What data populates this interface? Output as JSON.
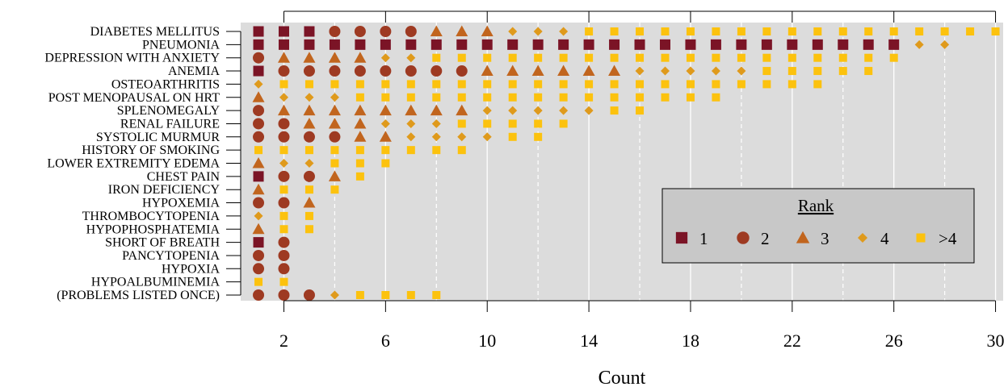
{
  "chart_data": {
    "type": "scatter",
    "xlabel": "Count",
    "xlim": [
      0.3,
      30.3
    ],
    "x_ticks": [
      2,
      6,
      10,
      14,
      18,
      22,
      26,
      30
    ],
    "x_top_ticks": [
      2,
      6,
      10,
      14,
      18,
      22,
      26,
      30
    ],
    "grid": true,
    "grid_solid_at": [
      2,
      6,
      10,
      14,
      18,
      22,
      26,
      30
    ],
    "grid_dashed_at": [
      4,
      8,
      12,
      16,
      20,
      24,
      28
    ],
    "legend": {
      "title": "Rank",
      "position": "bottom-right",
      "entries": [
        {
          "rank": "1",
          "label": "1",
          "shape": "square",
          "color": "#7b1426"
        },
        {
          "rank": "2",
          "label": "2",
          "shape": "circle",
          "color": "#9e3a22"
        },
        {
          "rank": "3",
          "label": "3",
          "shape": "triangle",
          "color": "#c1651e"
        },
        {
          "rank": "4",
          "label": "4",
          "shape": "diamond",
          "color": "#df9a1c"
        },
        {
          "rank": ">4",
          "label": ">4",
          "shape": "square-small",
          "color": "#fcc20e"
        }
      ]
    },
    "rows": [
      {
        "label": "DIABETES MELLITUS",
        "ranks": [
          "1",
          "1",
          "1",
          "2",
          "2",
          "2",
          "2",
          "3",
          "3",
          "3",
          "4",
          "4",
          "4",
          ">4",
          ">4",
          ">4",
          ">4",
          ">4",
          ">4",
          ">4",
          ">4",
          ">4",
          ">4",
          ">4",
          ">4",
          ">4",
          ">4",
          ">4",
          ">4",
          ">4"
        ]
      },
      {
        "label": "PNEUMONIA",
        "ranks": [
          "1",
          "1",
          "1",
          "1",
          "1",
          "1",
          "1",
          "1",
          "1",
          "1",
          "1",
          "1",
          "1",
          "1",
          "1",
          "1",
          "1",
          "1",
          "1",
          "1",
          "1",
          "1",
          "1",
          "1",
          "1",
          "1",
          "4",
          "4"
        ]
      },
      {
        "label": "DEPRESSION WITH ANXIETY",
        "ranks": [
          "2",
          "3",
          "3",
          "3",
          "3",
          "4",
          "4",
          ">4",
          ">4",
          ">4",
          ">4",
          ">4",
          ">4",
          ">4",
          ">4",
          ">4",
          ">4",
          ">4",
          ">4",
          ">4",
          ">4",
          ">4",
          ">4",
          ">4",
          ">4",
          ">4"
        ]
      },
      {
        "label": "ANEMIA",
        "ranks": [
          "1",
          "2",
          "2",
          "2",
          "2",
          "2",
          "2",
          "2",
          "2",
          "3",
          "3",
          "3",
          "3",
          "3",
          "3",
          "4",
          "4",
          "4",
          "4",
          "4",
          ">4",
          ">4",
          ">4",
          ">4",
          ">4"
        ]
      },
      {
        "label": "OSTEOARTHRITIS",
        "ranks": [
          "4",
          ">4",
          ">4",
          ">4",
          ">4",
          ">4",
          ">4",
          ">4",
          ">4",
          ">4",
          ">4",
          ">4",
          ">4",
          ">4",
          ">4",
          ">4",
          ">4",
          ">4",
          ">4",
          ">4",
          ">4",
          ">4",
          ">4"
        ]
      },
      {
        "label": "POST MENOPAUSAL ON HRT",
        "ranks": [
          "3",
          "4",
          "4",
          "4",
          ">4",
          ">4",
          ">4",
          ">4",
          ">4",
          ">4",
          ">4",
          ">4",
          ">4",
          ">4",
          ">4",
          ">4",
          ">4",
          ">4",
          ">4"
        ]
      },
      {
        "label": "SPLENOMEGALY",
        "ranks": [
          "2",
          "3",
          "3",
          "3",
          "3",
          "3",
          "3",
          "3",
          "3",
          "4",
          "4",
          "4",
          "4",
          "4",
          ">4",
          ">4"
        ]
      },
      {
        "label": "RENAL FAILURE",
        "ranks": [
          "2",
          "2",
          "3",
          "3",
          "3",
          "4",
          "4",
          "4",
          ">4",
          ">4",
          ">4",
          ">4",
          ">4"
        ]
      },
      {
        "label": "SYSTOLIC MURMUR",
        "ranks": [
          "2",
          "2",
          "2",
          "2",
          "3",
          "3",
          "4",
          "4",
          "4",
          "4",
          ">4",
          ">4"
        ]
      },
      {
        "label": "HISTORY OF SMOKING",
        "ranks": [
          ">4",
          ">4",
          ">4",
          ">4",
          ">4",
          ">4",
          ">4",
          ">4",
          ">4"
        ]
      },
      {
        "label": "LOWER EXTREMITY EDEMA",
        "ranks": [
          "3",
          "4",
          "4",
          ">4",
          ">4",
          ">4"
        ]
      },
      {
        "label": "CHEST PAIN",
        "ranks": [
          "1",
          "2",
          "2",
          "3",
          ">4"
        ]
      },
      {
        "label": "IRON DEFICIENCY",
        "ranks": [
          "3",
          ">4",
          ">4",
          ">4"
        ]
      },
      {
        "label": "HYPOXEMIA",
        "ranks": [
          "2",
          "2",
          "3"
        ]
      },
      {
        "label": "THROMBOCYTOPENIA",
        "ranks": [
          "4",
          ">4",
          ">4"
        ]
      },
      {
        "label": "HYPOPHOSPHATEMIA",
        "ranks": [
          "3",
          ">4",
          ">4"
        ]
      },
      {
        "label": "SHORT OF BREATH",
        "ranks": [
          "1",
          "2"
        ]
      },
      {
        "label": "PANCYTOPENIA",
        "ranks": [
          "2",
          "2"
        ]
      },
      {
        "label": "HYPOXIA",
        "ranks": [
          "2",
          "2"
        ]
      },
      {
        "label": "HYPOALBUMINEMIA",
        "ranks": [
          ">4",
          ">4"
        ]
      },
      {
        "label": "(PROBLEMS LISTED ONCE)",
        "ranks": [
          "2",
          "2",
          "2",
          "4",
          ">4",
          ">4",
          ">4",
          ">4"
        ]
      }
    ]
  }
}
